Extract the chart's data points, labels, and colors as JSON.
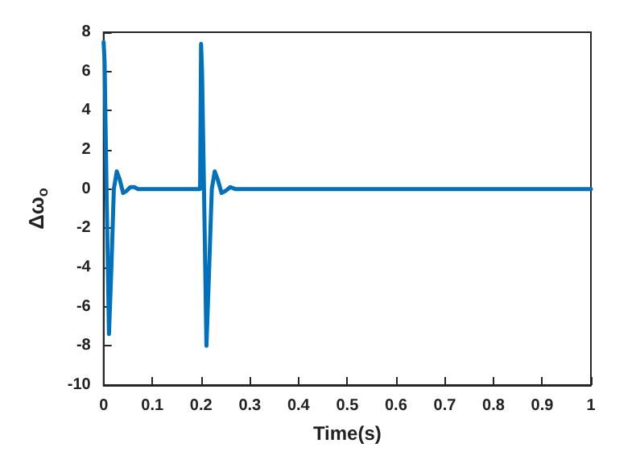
{
  "chart_data": {
    "type": "line",
    "xlabel": "Time(s)",
    "ylabel": "Δω$_{o}$",
    "xlim": [
      0,
      1
    ],
    "xticks": [
      0,
      0.1,
      0.2,
      0.3,
      0.4,
      0.5,
      0.6,
      0.7,
      0.8,
      0.9,
      1
    ],
    "ylim": [
      -10,
      8
    ],
    "yticks": [
      -10,
      -8,
      -6,
      -4,
      -2,
      0,
      2,
      4,
      6,
      8
    ],
    "grid": false,
    "marker": "none",
    "line_style": "solid",
    "series": [
      {
        "color": "#0072bd",
        "x": [
          0,
          0.002,
          0.006,
          0.011,
          0.016,
          0.021,
          0.027,
          0.033,
          0.04,
          0.047,
          0.055,
          0.063,
          0.07,
          0.1,
          0.15,
          0.198,
          0.2,
          0.202,
          0.206,
          0.211,
          0.216,
          0.222,
          0.228,
          0.234,
          0.242,
          0.25,
          0.26,
          0.27,
          0.28,
          0.4,
          0.6,
          0.8,
          1
        ],
        "values": [
          7.5,
          6.5,
          0,
          -7.4,
          -4,
          0,
          0.9,
          0.5,
          -0.2,
          -0.1,
          0.1,
          0.1,
          0,
          0,
          0,
          0,
          7.4,
          6,
          0,
          -8,
          -4.5,
          0,
          0.9,
          0.5,
          -0.2,
          -0.1,
          0.1,
          0,
          0,
          0,
          0,
          0,
          0
        ]
      }
    ]
  }
}
